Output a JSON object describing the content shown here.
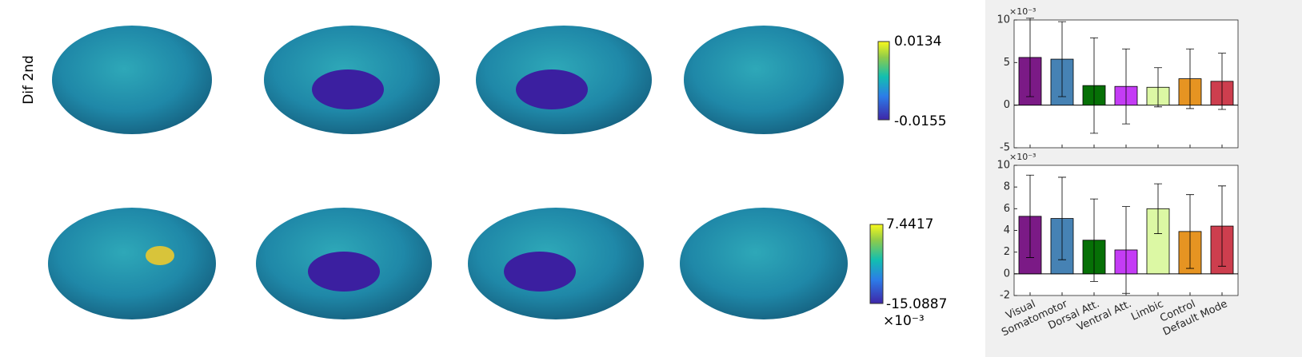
{
  "row_label": "Dif 2nd",
  "colorbars": [
    {
      "max_label": "0.0134",
      "min_label": "-0.0155"
    },
    {
      "max_label": "7.4417",
      "min_label": "-15.0887",
      "exponent": "×10⁻³"
    }
  ],
  "chart_data": [
    {
      "type": "bar",
      "exponent": "×10⁻³",
      "colors": [
        "#7b1a86",
        "#4682b4",
        "#067006",
        "#c43cf5",
        "#dcf8a4",
        "#e69422",
        "#cd3e4e"
      ],
      "values": [
        5.6,
        5.4,
        2.3,
        2.2,
        2.1,
        3.1,
        2.8
      ],
      "errors": [
        4.6,
        4.4,
        5.6,
        4.4,
        2.3,
        3.5,
        3.3
      ],
      "ylim": [
        -5,
        10
      ],
      "yticks": [
        -5,
        0,
        5,
        10
      ]
    },
    {
      "type": "bar",
      "exponent": "×10⁻³",
      "categories": [
        "Visual",
        "Somatomotor",
        "Dorsal Att.",
        "Ventral Att.",
        "Limbic",
        "Control",
        "Default Mode"
      ],
      "colors": [
        "#7b1a86",
        "#4682b4",
        "#067006",
        "#c43cf5",
        "#dcf8a4",
        "#e69422",
        "#cd3e4e"
      ],
      "values": [
        5.3,
        5.1,
        3.1,
        2.2,
        6.0,
        3.9,
        4.4
      ],
      "errors": [
        3.8,
        3.8,
        3.8,
        4.0,
        2.3,
        3.4,
        3.7
      ],
      "ylim": [
        -2,
        10
      ],
      "yticks": [
        -2,
        0,
        2,
        4,
        6,
        8,
        10
      ]
    }
  ]
}
